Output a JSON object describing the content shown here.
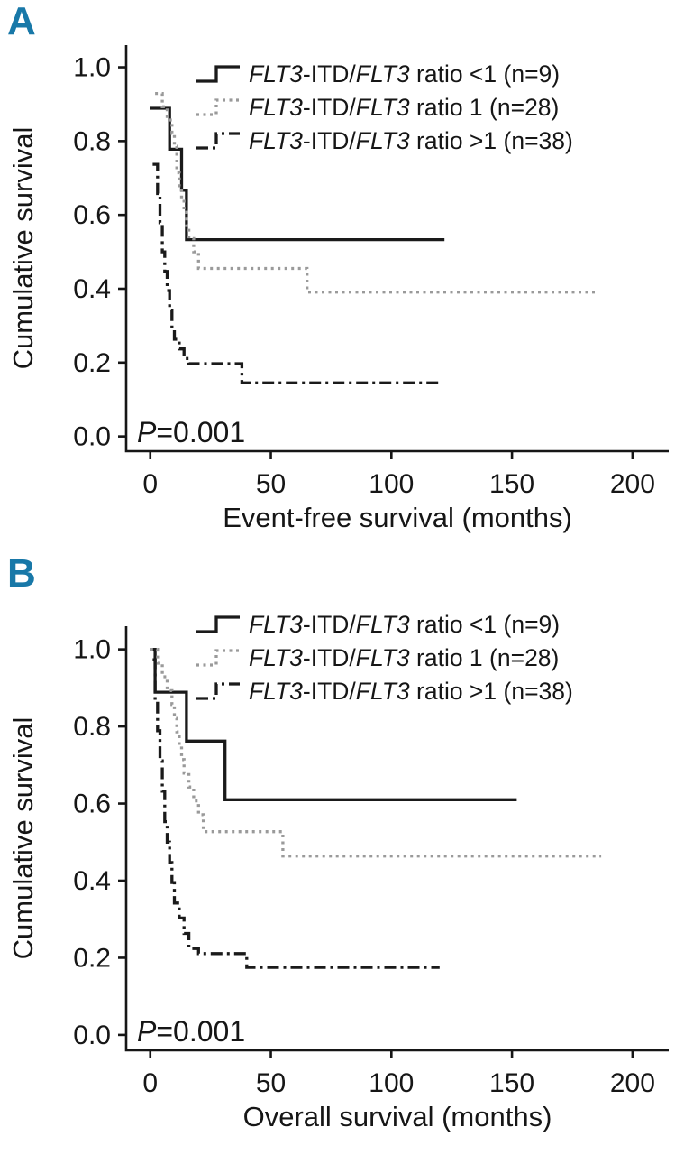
{
  "accent_color": "#1878a8",
  "colors": {
    "solid_black": "#1a1a1a",
    "dashed_gray": "#9a9a9a",
    "dashdot_black": "#1a1a1a"
  },
  "panels": [
    {
      "label": "A",
      "p_value": {
        "italic": "P",
        "rest": "=0.001"
      }
    },
    {
      "label": "B",
      "p_value": {
        "italic": "P",
        "rest": "=0.001"
      }
    }
  ],
  "chart_data": [
    {
      "type": "line",
      "subtype": "kaplan-meier-step",
      "panel": "A",
      "title": "",
      "xlabel": "Event-free survival (months)",
      "ylabel": "Cumulative survival",
      "xlim": [
        -10,
        215
      ],
      "xticks": [
        0,
        50,
        100,
        150,
        200
      ],
      "ylim": [
        -0.04,
        1.06
      ],
      "yticks": [
        0.0,
        0.2,
        0.4,
        0.6,
        0.8,
        1.0
      ],
      "grid": false,
      "legend_position": "top-inside",
      "annotation": "P=0.001",
      "series": [
        {
          "name_parts": {
            "gene1": "FLT3",
            "mid": "-ITD/",
            "gene2": "FLT3",
            "rest": " ratio <1 (n=9)"
          },
          "style": "solid",
          "color": "#1a1a1a",
          "steps": [
            [
              0,
              0.889
            ],
            [
              8,
              0.778
            ],
            [
              13,
              0.667
            ],
            [
              15,
              0.533
            ],
            [
              122,
              0.533
            ]
          ]
        },
        {
          "name_parts": {
            "gene1": "FLT3",
            "mid": "-ITD/",
            "gene2": "FLT3",
            "rest": " ratio 1 (n=28)"
          },
          "style": "dashed",
          "color": "#9a9a9a",
          "steps": [
            [
              2,
              0.929
            ],
            [
              5,
              0.893
            ],
            [
              7,
              0.857
            ],
            [
              9,
              0.821
            ],
            [
              10,
              0.786
            ],
            [
              11,
              0.714
            ],
            [
              12,
              0.679
            ],
            [
              13,
              0.643
            ],
            [
              14,
              0.607
            ],
            [
              15,
              0.571
            ],
            [
              16,
              0.536
            ],
            [
              18,
              0.5
            ],
            [
              20,
              0.455
            ],
            [
              65,
              0.391
            ],
            [
              186,
              0.391
            ]
          ]
        },
        {
          "name_parts": {
            "gene1": "FLT3",
            "mid": "-ITD/",
            "gene2": "FLT3",
            "rest": " ratio >1 (n=38)"
          },
          "style": "dashdot",
          "color": "#1a1a1a",
          "steps": [
            [
              1,
              0.737
            ],
            [
              3,
              0.658
            ],
            [
              4,
              0.579
            ],
            [
              5,
              0.5
            ],
            [
              6,
              0.447
            ],
            [
              7,
              0.395
            ],
            [
              8,
              0.342
            ],
            [
              9,
              0.289
            ],
            [
              10,
              0.263
            ],
            [
              12,
              0.237
            ],
            [
              14,
              0.211
            ],
            [
              16,
              0.197
            ],
            [
              35,
              0.197
            ],
            [
              38,
              0.145
            ],
            [
              120,
              0.145
            ]
          ]
        }
      ]
    },
    {
      "type": "line",
      "subtype": "kaplan-meier-step",
      "panel": "B",
      "title": "",
      "xlabel": "Overall survival (months)",
      "ylabel": "Cumulative survival",
      "xlim": [
        -10,
        215
      ],
      "xticks": [
        0,
        50,
        100,
        150,
        200
      ],
      "ylim": [
        -0.04,
        1.06
      ],
      "yticks": [
        0.0,
        0.2,
        0.4,
        0.6,
        0.8,
        1.0
      ],
      "grid": false,
      "legend_position": "top-inside",
      "annotation": "P=0.001",
      "series": [
        {
          "name_parts": {
            "gene1": "FLT3",
            "mid": "-ITD/",
            "gene2": "FLT3",
            "rest": " ratio <1 (n=9)"
          },
          "style": "solid",
          "color": "#1a1a1a",
          "steps": [
            [
              0,
              1.0
            ],
            [
              2,
              0.889
            ],
            [
              15,
              0.762
            ],
            [
              31,
              0.61
            ],
            [
              152,
              0.61
            ]
          ]
        },
        {
          "name_parts": {
            "gene1": "FLT3",
            "mid": "-ITD/",
            "gene2": "FLT3",
            "rest": " ratio 1 (n=28)"
          },
          "style": "dashed",
          "color": "#9a9a9a",
          "steps": [
            [
              0,
              1.0
            ],
            [
              3,
              0.964
            ],
            [
              5,
              0.929
            ],
            [
              7,
              0.893
            ],
            [
              9,
              0.857
            ],
            [
              10,
              0.821
            ],
            [
              11,
              0.786
            ],
            [
              12,
              0.75
            ],
            [
              13,
              0.714
            ],
            [
              14,
              0.679
            ],
            [
              16,
              0.643
            ],
            [
              18,
              0.607
            ],
            [
              20,
              0.571
            ],
            [
              22,
              0.527
            ],
            [
              55,
              0.464
            ],
            [
              187,
              0.464
            ]
          ]
        },
        {
          "name_parts": {
            "gene1": "FLT3",
            "mid": "-ITD/",
            "gene2": "FLT3",
            "rest": " ratio >1 (n=38)"
          },
          "style": "dashdot",
          "color": "#1a1a1a",
          "steps": [
            [
              1,
              0.973
            ],
            [
              2,
              0.868
            ],
            [
              3,
              0.789
            ],
            [
              4,
              0.711
            ],
            [
              5,
              0.632
            ],
            [
              6,
              0.553
            ],
            [
              7,
              0.5
            ],
            [
              8,
              0.447
            ],
            [
              9,
              0.395
            ],
            [
              10,
              0.342
            ],
            [
              12,
              0.303
            ],
            [
              14,
              0.263
            ],
            [
              16,
              0.224
            ],
            [
              20,
              0.211
            ],
            [
              40,
              0.175
            ],
            [
              120,
              0.175
            ]
          ]
        }
      ]
    }
  ]
}
